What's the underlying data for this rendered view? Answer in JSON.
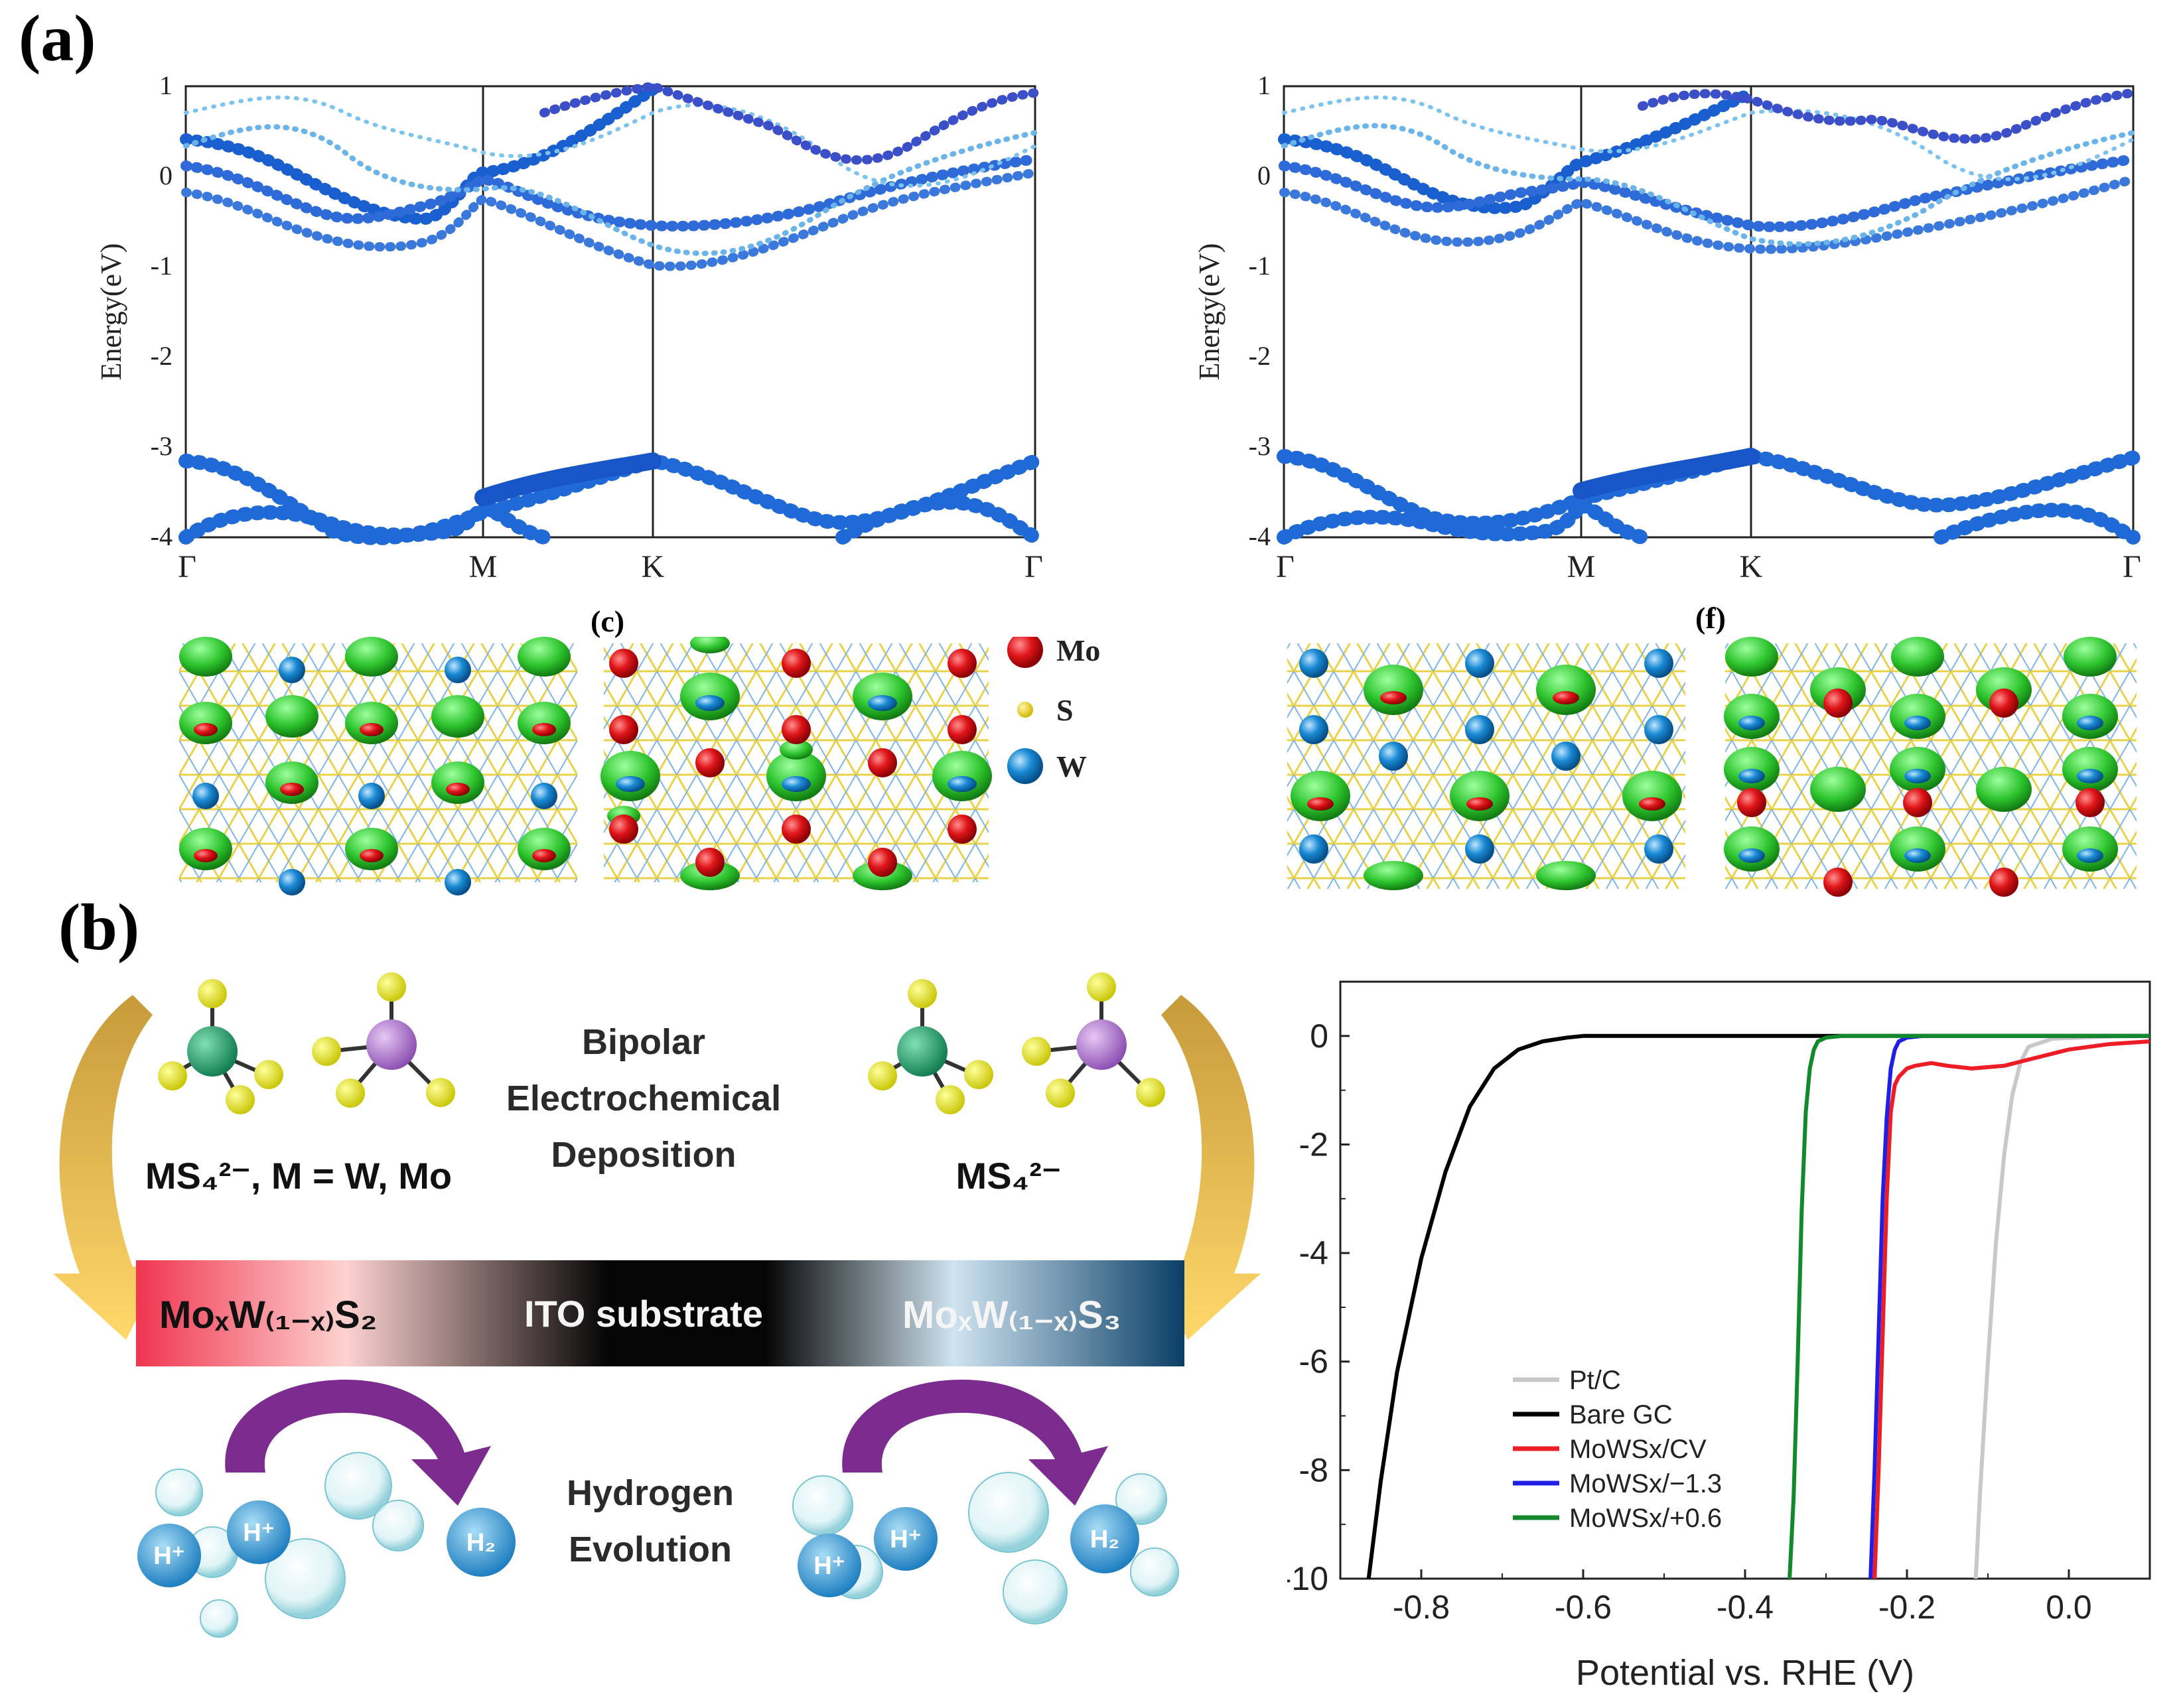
{
  "panel_a": {
    "label": "(a)",
    "band_left": {
      "ylabel": "Energy(eV)",
      "yticks": [
        "1",
        "0",
        "-1",
        "-2",
        "-3",
        "-4"
      ],
      "xticks": [
        "Γ",
        "M",
        "K",
        "Γ"
      ]
    },
    "band_right": {
      "ylabel": "Energy(eV)",
      "yticks": [
        "1",
        "0",
        "-1",
        "-2",
        "-3",
        "-4"
      ],
      "xticks": [
        "Γ",
        "M",
        "K",
        "Γ"
      ]
    },
    "sub_c": "(c)",
    "sub_f": "(f)",
    "legend": [
      {
        "label": "Mo",
        "color": "#e0161a"
      },
      {
        "label": "S",
        "color": "#e8d020"
      },
      {
        "label": "W",
        "color": "#1a8ad4"
      }
    ]
  },
  "panel_b": {
    "label": "(b)",
    "schematic": {
      "precursor_left": "MS₄²⁻, M = W, Mo",
      "precursor_right": "MS₄²⁻",
      "process": [
        "Bipolar",
        "Electrochemical",
        "Deposition"
      ],
      "bar_left": "MoₓW₍₁₋ₓ₎S₂",
      "bar_center": "ITO substrate",
      "bar_right": "MoₓW₍₁₋ₓ₎S₃",
      "reaction": [
        "Hydrogen",
        "Evolution"
      ],
      "proton": "H⁺",
      "hydrogen": "H₂"
    }
  },
  "chart_data": {
    "type": "line",
    "title": "",
    "xlabel": "Potential vs. RHE (V)",
    "ylabel": "",
    "xlim": [
      -0.9,
      0.1
    ],
    "ylim": [
      -10,
      1
    ],
    "xticks": [
      "-0.8",
      "-0.6",
      "-0.4",
      "-0.2",
      "0.0"
    ],
    "yticks": [
      "0",
      "-2",
      "-4",
      "-6",
      "-8",
      "-10"
    ],
    "legend_position": "bottom-center",
    "series": [
      {
        "name": "Pt/C",
        "color": "#c8c8c8",
        "x": [
          -0.115,
          -0.11,
          -0.1,
          -0.09,
          -0.08,
          -0.07,
          -0.06,
          -0.05,
          -0.02,
          0.05,
          0.1
        ],
        "y": [
          -10,
          -8.5,
          -6,
          -3.8,
          -2.2,
          -1.1,
          -0.5,
          -0.2,
          -0.05,
          -0.01,
          0
        ]
      },
      {
        "name": "Bare GC",
        "color": "#000000",
        "x": [
          -0.865,
          -0.85,
          -0.83,
          -0.8,
          -0.77,
          -0.74,
          -0.71,
          -0.68,
          -0.65,
          -0.62,
          -0.6,
          -0.4,
          -0.2,
          0.1
        ],
        "y": [
          -10,
          -8.2,
          -6.2,
          -4.1,
          -2.5,
          -1.3,
          -0.6,
          -0.25,
          -0.1,
          -0.03,
          0,
          0,
          0,
          0
        ]
      },
      {
        "name": "MoWSx/CV",
        "color": "#ee1c24",
        "x": [
          -0.24,
          -0.235,
          -0.23,
          -0.225,
          -0.22,
          -0.215,
          -0.21,
          -0.2,
          -0.19,
          -0.17,
          -0.15,
          -0.12,
          -0.08,
          -0.04,
          0.0,
          0.05,
          0.1
        ],
        "y": [
          -10,
          -8,
          -5.5,
          -3,
          -1.4,
          -0.9,
          -0.75,
          -0.6,
          -0.55,
          -0.5,
          -0.55,
          -0.6,
          -0.55,
          -0.4,
          -0.25,
          -0.15,
          -0.1
        ]
      },
      {
        "name": "MoWSx/−1.3",
        "color": "#1f1fe6",
        "x": [
          -0.245,
          -0.24,
          -0.235,
          -0.23,
          -0.225,
          -0.22,
          -0.215,
          -0.21,
          -0.2,
          -0.18,
          -0.1,
          0.1
        ],
        "y": [
          -10,
          -8,
          -5.5,
          -3,
          -1.5,
          -0.6,
          -0.25,
          -0.1,
          -0.03,
          0,
          0,
          0
        ]
      },
      {
        "name": "MoWSx/+0.6",
        "color": "#128a2c",
        "x": [
          -0.345,
          -0.34,
          -0.335,
          -0.33,
          -0.325,
          -0.32,
          -0.315,
          -0.31,
          -0.3,
          -0.28,
          -0.2,
          0.1
        ],
        "y": [
          -10,
          -8.5,
          -6,
          -3.2,
          -1.4,
          -0.6,
          -0.25,
          -0.1,
          -0.03,
          0,
          0,
          0
        ]
      }
    ]
  }
}
